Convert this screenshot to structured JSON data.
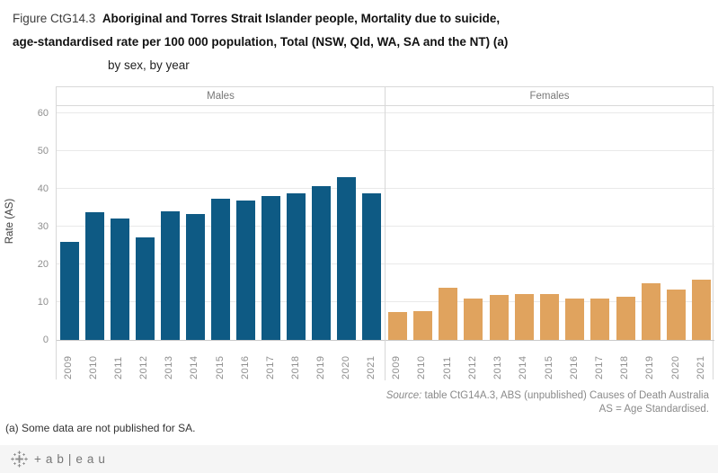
{
  "title": {
    "figure_label": "Figure CtG14.3",
    "line1_bold": "Aboriginal and Torres Strait Islander people, Mortality due to suicide,",
    "line2_bold": "age-standardised rate per 100 000 population, Total (NSW, Qld, WA, SA and the NT) (a)",
    "line3": "by sex, by year"
  },
  "chart_data": {
    "type": "bar",
    "facet": "by sex",
    "categories": [
      "2009",
      "2010",
      "2011",
      "2012",
      "2013",
      "2014",
      "2015",
      "2016",
      "2017",
      "2018",
      "2019",
      "2020",
      "2021"
    ],
    "series": [
      {
        "name": "Males",
        "color": "#0e5a84",
        "values": [
          26.0,
          33.9,
          32.1,
          27.2,
          34.1,
          33.3,
          37.5,
          36.8,
          38.1,
          38.9,
          40.7,
          43.2,
          38.9
        ]
      },
      {
        "name": "Females",
        "color": "#e0a35e",
        "values": [
          7.3,
          7.6,
          13.7,
          11.0,
          11.8,
          12.2,
          12.2,
          11.0,
          11.0,
          11.5,
          15.0,
          13.4,
          16.0
        ]
      }
    ],
    "xlabel": "",
    "ylabel": "Rate (AS)",
    "yticks": [
      0,
      10,
      20,
      30,
      40,
      50,
      60
    ],
    "ylim": [
      0,
      62
    ],
    "grid": true,
    "legend_position": "none"
  },
  "footer": {
    "source_label": "Source:",
    "source_text": " table CtG14A.3, ABS (unpublished) Causes of Death Australia",
    "as_note": "AS = Age Standardised.",
    "footnote": "(a) Some data are not published for SA."
  },
  "branding": {
    "wordmark": "+ab|eau"
  },
  "colors": {
    "males_bar": "#0e5a84",
    "females_bar": "#e0a35e",
    "grid": "#e9e9e9",
    "frame": "#d8d8d8",
    "tick_text": "#8e8e8e",
    "header_text": "#787878"
  }
}
